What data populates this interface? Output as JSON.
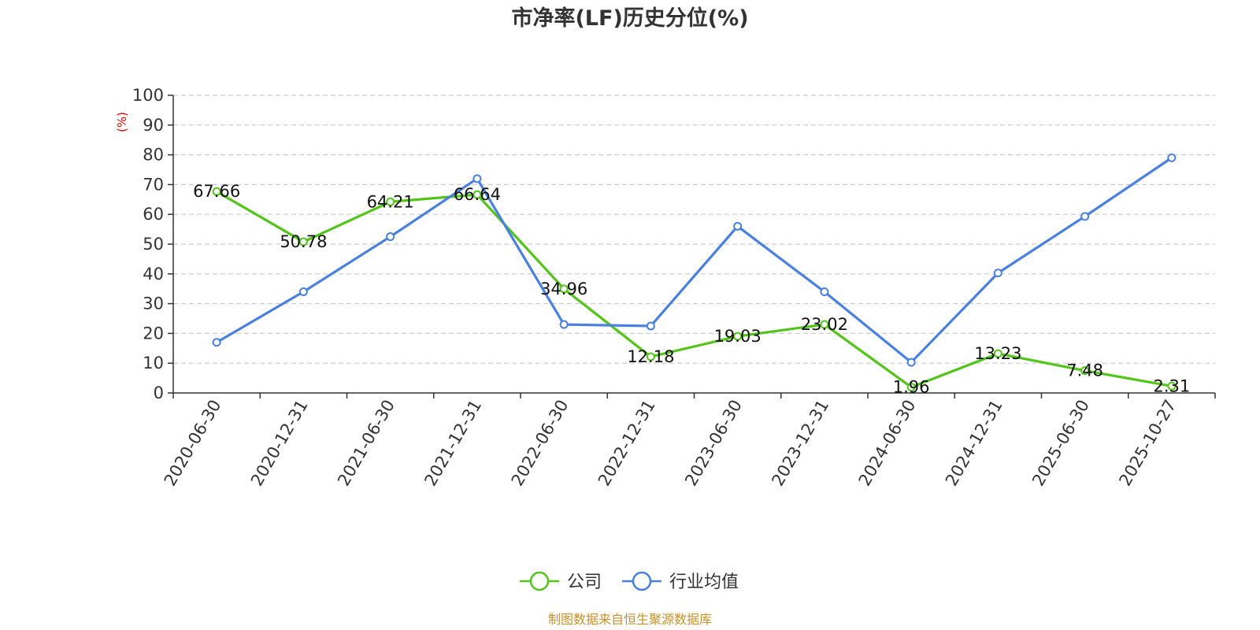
{
  "chart_data": {
    "type": "line",
    "title": "市净率(LF)历史分位(%)",
    "ylabel": "(%)",
    "ylim": [
      0,
      100
    ],
    "yticks": [
      0,
      10,
      20,
      30,
      40,
      50,
      60,
      70,
      80,
      90,
      100
    ],
    "grid": true,
    "legend_placement": "bottom-center",
    "categories": [
      "2020-06-30",
      "2020-12-31",
      "2021-06-30",
      "2021-12-31",
      "2022-06-30",
      "2022-12-31",
      "2023-06-30",
      "2023-12-31",
      "2024-06-30",
      "2024-12-31",
      "2025-06-30",
      "2025-10-27"
    ],
    "series": [
      {
        "name": "公司",
        "color": "#52c41a",
        "values": [
          67.66,
          50.78,
          64.21,
          66.64,
          34.96,
          12.18,
          19.03,
          23.02,
          1.96,
          13.23,
          7.48,
          2.31
        ],
        "labels": [
          "67.66",
          "50.78",
          "64.21",
          "66.64",
          "34.96",
          "12.18",
          "19.03",
          "23.02",
          "1.96",
          "13.23",
          "7.48",
          "2.31"
        ]
      },
      {
        "name": "行业均值",
        "color": "#4a80e0",
        "values": [
          17,
          34,
          52.5,
          72,
          23,
          22.5,
          56,
          34,
          10.3,
          40.3,
          59.3,
          79
        ]
      }
    ],
    "source": "制图数据来自恒生聚源数据库"
  },
  "colors": {
    "axis": "#333333",
    "grid": "#cccccc",
    "unit": "#e00000",
    "source": "#c8902a"
  }
}
